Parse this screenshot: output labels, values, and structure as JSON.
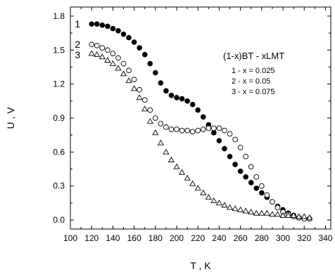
{
  "chart_data": {
    "type": "scatter",
    "title": "",
    "xlabel": "T , K",
    "ylabel": "U , V",
    "xlim": [
      100,
      345
    ],
    "ylim": [
      -0.08,
      1.88
    ],
    "x_ticks": [
      100,
      120,
      140,
      160,
      180,
      200,
      220,
      240,
      260,
      280,
      300,
      320,
      340
    ],
    "y_ticks": [
      0.0,
      0.3,
      0.6,
      0.9,
      1.2,
      1.5,
      1.8
    ],
    "y_tick_labels": [
      "0.0",
      "0.3",
      "0.6",
      "0.9",
      "1.2",
      "1.5",
      "1.8"
    ],
    "grid": false,
    "annotation": {
      "title": "(1-x)BT - xLMT",
      "entries": [
        "1 - x = 0.025",
        "2 - x = 0.05",
        "3 - x = 0.075"
      ]
    },
    "series": [
      {
        "name": "1",
        "marker": "filled-circle",
        "x": [
          120,
          125,
          130,
          135,
          140,
          145,
          150,
          155,
          160,
          165,
          170,
          175,
          180,
          185,
          190,
          195,
          200,
          205,
          210,
          215,
          220,
          225,
          230,
          235,
          240,
          245,
          250,
          255,
          260,
          265,
          270,
          275,
          280,
          285,
          290,
          295,
          300,
          305,
          310,
          315,
          320,
          325
        ],
        "y": [
          1.73,
          1.73,
          1.72,
          1.71,
          1.69,
          1.67,
          1.64,
          1.61,
          1.57,
          1.52,
          1.46,
          1.38,
          1.3,
          1.21,
          1.14,
          1.1,
          1.08,
          1.07,
          1.05,
          1.02,
          0.97,
          0.91,
          0.84,
          0.77,
          0.7,
          0.63,
          0.56,
          0.49,
          0.43,
          0.38,
          0.33,
          0.28,
          0.24,
          0.2,
          0.16,
          0.12,
          0.09,
          0.06,
          0.04,
          0.02,
          0.01,
          0.01
        ]
      },
      {
        "name": "2",
        "marker": "open-circle",
        "x": [
          120,
          125,
          130,
          135,
          140,
          145,
          150,
          155,
          160,
          165,
          170,
          175,
          180,
          185,
          190,
          195,
          200,
          205,
          210,
          215,
          220,
          225,
          230,
          235,
          240,
          245,
          250,
          255,
          260,
          265,
          270,
          275,
          280,
          285,
          290,
          295,
          300,
          305,
          310,
          315,
          320,
          325
        ],
        "y": [
          1.55,
          1.54,
          1.52,
          1.5,
          1.47,
          1.43,
          1.38,
          1.32,
          1.24,
          1.15,
          1.06,
          0.97,
          0.9,
          0.85,
          0.82,
          0.8,
          0.8,
          0.79,
          0.79,
          0.78,
          0.79,
          0.8,
          0.81,
          0.81,
          0.81,
          0.79,
          0.76,
          0.71,
          0.64,
          0.56,
          0.47,
          0.38,
          0.3,
          0.22,
          0.16,
          0.11,
          0.07,
          0.05,
          0.03,
          0.02,
          0.01,
          0.01
        ]
      },
      {
        "name": "3",
        "marker": "open-triangle",
        "x": [
          120,
          125,
          130,
          135,
          140,
          145,
          150,
          155,
          160,
          165,
          170,
          175,
          180,
          185,
          190,
          195,
          200,
          205,
          210,
          215,
          220,
          225,
          230,
          235,
          240,
          245,
          250,
          255,
          260,
          265,
          270,
          275,
          280,
          285,
          290,
          295,
          300,
          305,
          310,
          315,
          320,
          325
        ],
        "y": [
          1.47,
          1.46,
          1.44,
          1.41,
          1.38,
          1.34,
          1.29,
          1.23,
          1.16,
          1.08,
          0.98,
          0.87,
          0.77,
          0.68,
          0.6,
          0.53,
          0.47,
          0.42,
          0.37,
          0.32,
          0.28,
          0.24,
          0.2,
          0.17,
          0.15,
          0.13,
          0.11,
          0.1,
          0.09,
          0.08,
          0.07,
          0.06,
          0.06,
          0.06,
          0.05,
          0.05,
          0.04,
          0.04,
          0.04,
          0.03,
          0.03,
          0.02
        ]
      }
    ]
  }
}
